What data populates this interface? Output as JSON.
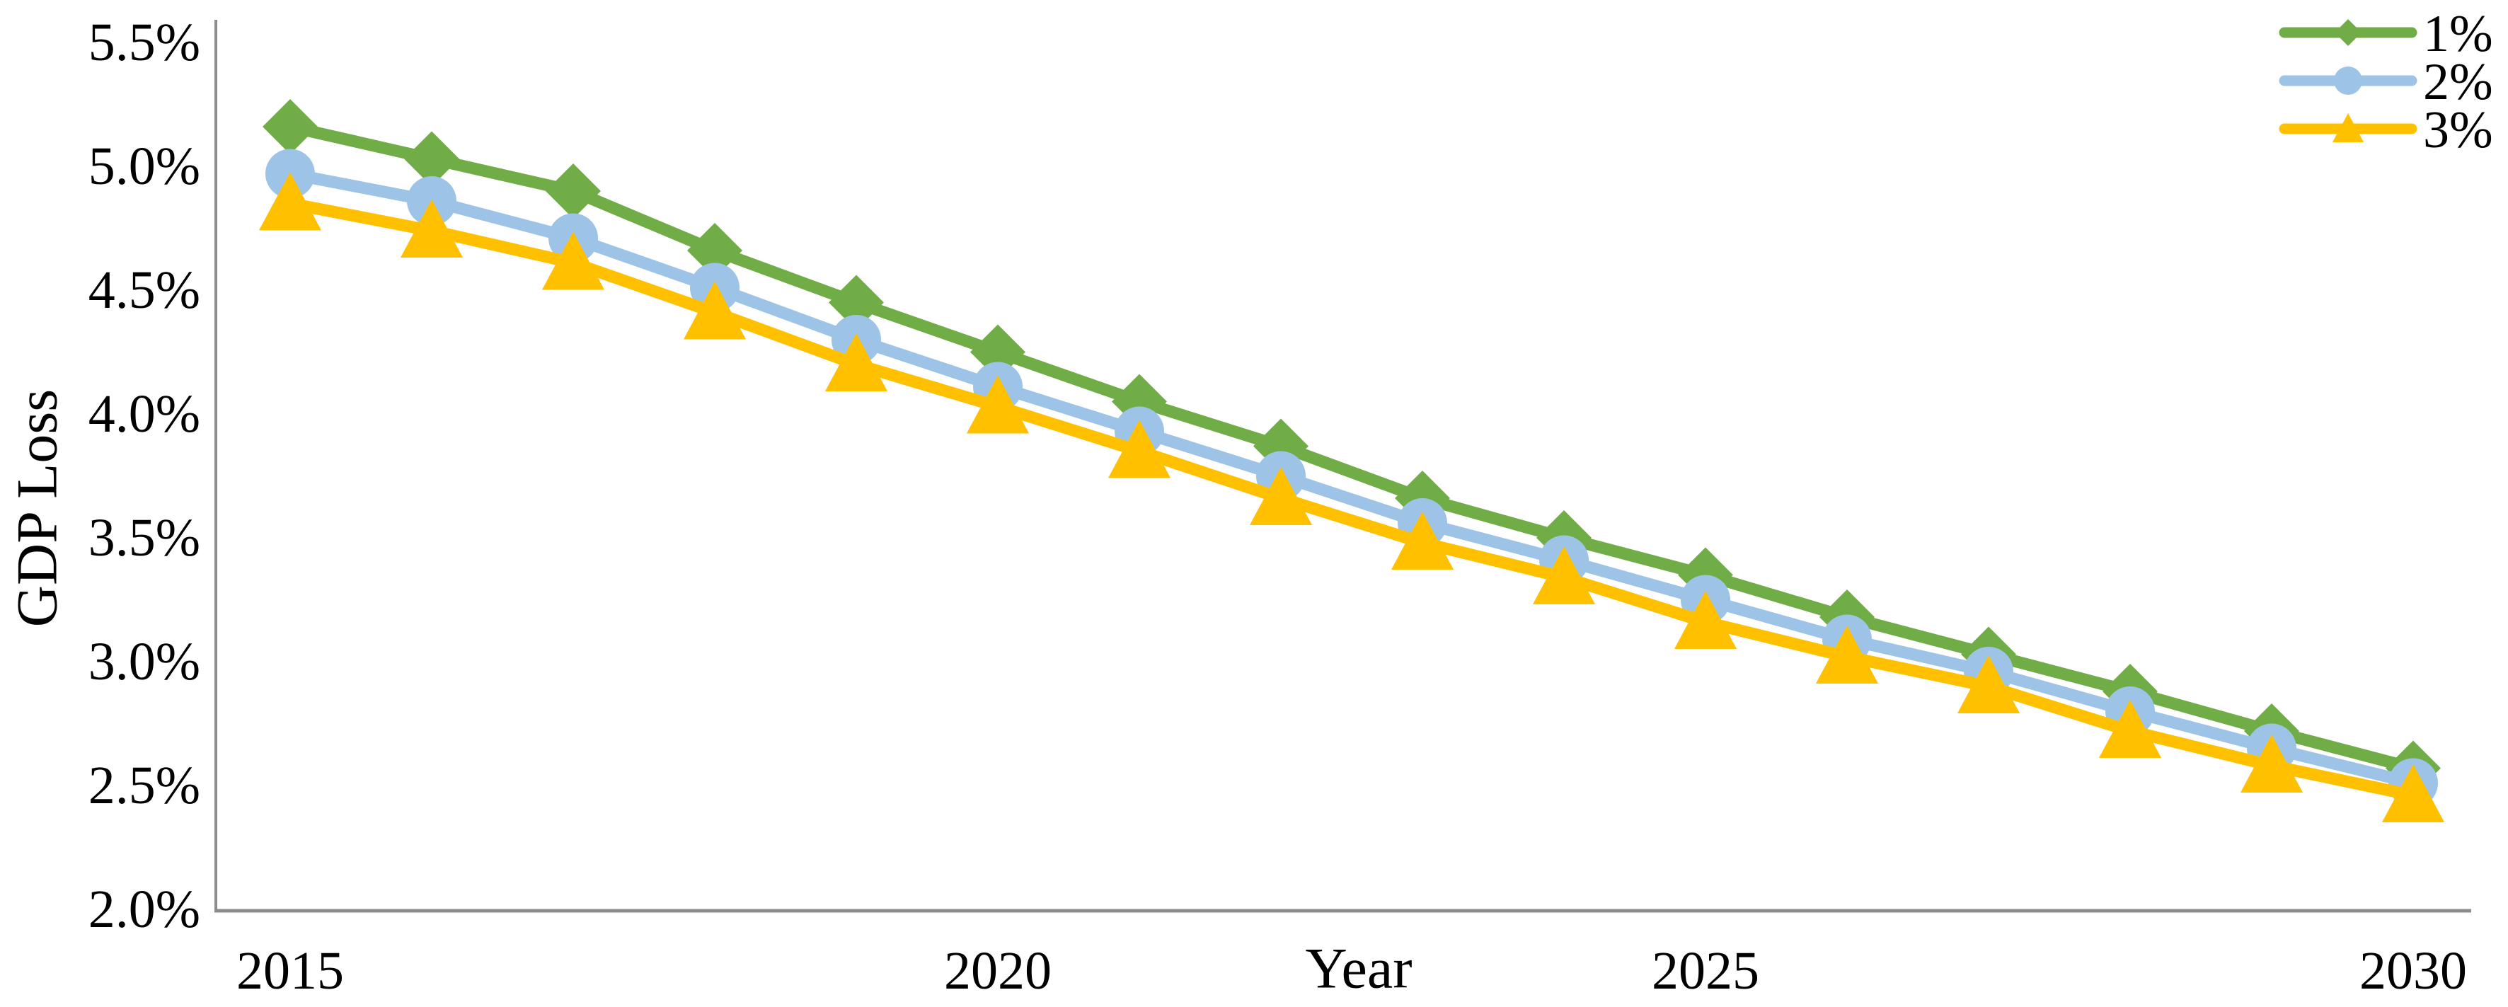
{
  "chart_data": {
    "type": "line",
    "title": "",
    "xlabel": "Year",
    "ylabel": "GDP Loss",
    "x": [
      2015,
      2016,
      2017,
      2018,
      2019,
      2020,
      2021,
      2022,
      2023,
      2024,
      2025,
      2026,
      2027,
      2028,
      2029,
      2030
    ],
    "x_tick_labels": [
      "2015",
      "2020",
      "2025",
      "2030"
    ],
    "y_tick_labels": [
      "5.5%",
      "5.0%",
      "4.5%",
      "4.0%",
      "3.5%",
      "3.0%",
      "2.5%",
      "2.0%"
    ],
    "y_ticks": [
      5.5,
      5.0,
      4.5,
      4.0,
      3.5,
      3.0,
      2.5,
      2.0
    ],
    "ylim": [
      2.0,
      5.5
    ],
    "grid": false,
    "legend_position": "top-right",
    "axis_color": "#8c8c8c",
    "text_color": "#000000",
    "series": [
      {
        "name": "1%",
        "marker": "diamond",
        "color": "#70AD47",
        "values": [
          5.16,
          5.03,
          4.9,
          4.66,
          4.45,
          4.25,
          4.05,
          3.87,
          3.66,
          3.5,
          3.35,
          3.18,
          3.03,
          2.88,
          2.72,
          2.57
        ]
      },
      {
        "name": "2%",
        "marker": "circle",
        "color": "#9DC3E6",
        "values": [
          4.97,
          4.86,
          4.71,
          4.51,
          4.3,
          4.11,
          3.93,
          3.75,
          3.56,
          3.41,
          3.25,
          3.09,
          2.96,
          2.8,
          2.65,
          2.51
        ]
      },
      {
        "name": "3%",
        "marker": "triangle",
        "color": "#FFC000",
        "values": [
          4.85,
          4.74,
          4.61,
          4.41,
          4.2,
          4.03,
          3.85,
          3.66,
          3.48,
          3.34,
          3.16,
          3.02,
          2.9,
          2.72,
          2.58,
          2.46
        ]
      }
    ]
  }
}
